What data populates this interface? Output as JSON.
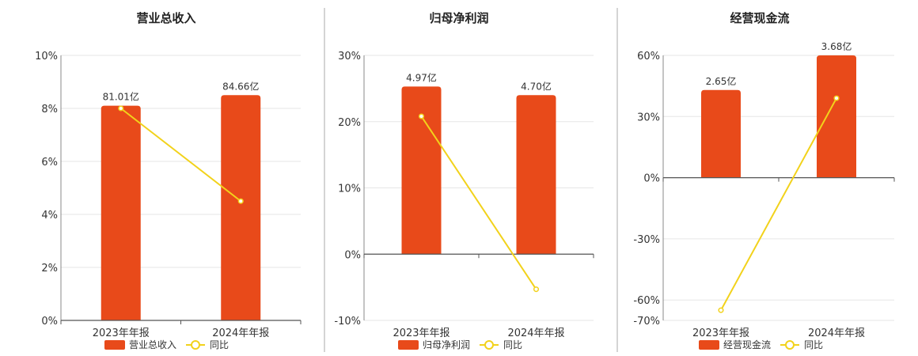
{
  "chart_data": [
    {
      "type": "bar",
      "title": "营业总收入",
      "categories": [
        "2023年年报",
        "2024年年报"
      ],
      "bar_labels": [
        "81.01亿",
        "84.66亿"
      ],
      "bar_values": [
        81.01,
        84.66
      ],
      "bar_axis_ref": [
        8.1,
        8.5
      ],
      "line_values": [
        8.0,
        4.5
      ],
      "ylim": [
        0,
        10
      ],
      "yticks": [
        0,
        2,
        4,
        6,
        8,
        10
      ],
      "ytick_labels": [
        "0%",
        "2%",
        "4%",
        "6%",
        "8%",
        "10%"
      ],
      "legend": [
        "营业总收入",
        "同比"
      ],
      "colors": {
        "bar": "#E84A1A",
        "line": "#F2D21B"
      }
    },
    {
      "type": "bar",
      "title": "归母净利润",
      "categories": [
        "2023年年报",
        "2024年年报"
      ],
      "bar_labels": [
        "4.97亿",
        "4.70亿"
      ],
      "bar_values": [
        4.97,
        4.7
      ],
      "bar_axis_ref": [
        25.3,
        24.0
      ],
      "line_values": [
        20.8,
        -5.3
      ],
      "ylim": [
        -10,
        30
      ],
      "yticks": [
        -10,
        0,
        10,
        20,
        30
      ],
      "ytick_labels": [
        "-10%",
        "0%",
        "10%",
        "20%",
        "30%"
      ],
      "legend": [
        "归母净利润",
        "同比"
      ],
      "colors": {
        "bar": "#E84A1A",
        "line": "#F2D21B"
      }
    },
    {
      "type": "bar",
      "title": "经营现金流",
      "categories": [
        "2023年年报",
        "2024年年报"
      ],
      "bar_labels": [
        "2.65亿",
        "3.68亿"
      ],
      "bar_values": [
        2.65,
        3.68
      ],
      "bar_axis_ref": [
        43.0,
        60.0
      ],
      "line_values": [
        -65.0,
        39.0
      ],
      "ylim": [
        -70,
        60
      ],
      "yticks": [
        -70,
        -60,
        -30,
        0,
        30,
        60
      ],
      "ytick_labels": [
        "-70%",
        "-60%",
        "-30%",
        "0%",
        "30%",
        "60%"
      ],
      "legend": [
        "经营现金流",
        "同比"
      ],
      "colors": {
        "bar": "#E84A1A",
        "line": "#F2D21B"
      }
    }
  ]
}
